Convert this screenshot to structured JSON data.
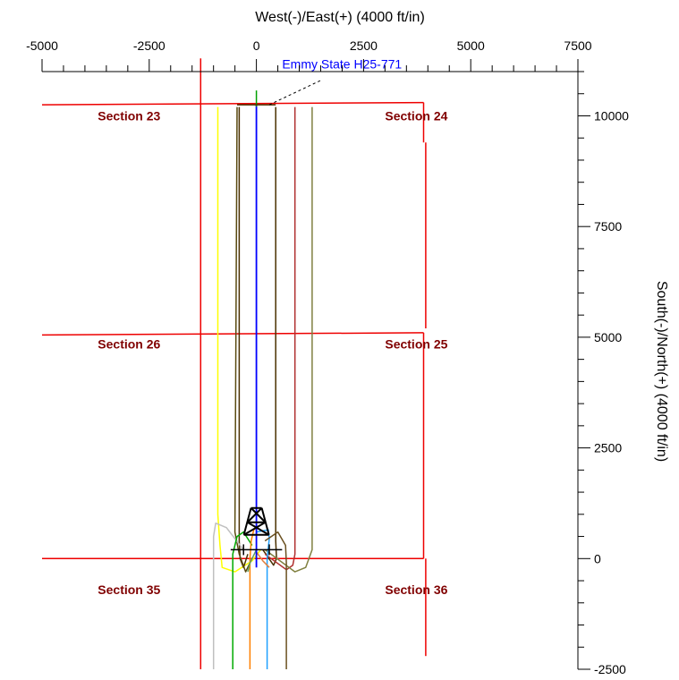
{
  "chart_data": {
    "type": "line",
    "title": "",
    "xlabel": "West(-)/East(+) (4000 ft/in)",
    "ylabel": "South(-)/North(+) (4000 ft/in)",
    "xlim": [
      -5000,
      7500
    ],
    "ylim": [
      -2500,
      11000
    ],
    "x_ticks": [
      -5000,
      -2500,
      0,
      2500,
      5000,
      7500
    ],
    "x_tick_labels": [
      "-5000",
      "-2500",
      "0",
      "2500",
      "5000",
      "7500"
    ],
    "y_ticks": [
      -2500,
      0,
      2500,
      5000,
      7500,
      10000
    ],
    "y_tick_labels": [
      "-2500",
      "0",
      "2500",
      "5000",
      "7500",
      "10000"
    ],
    "grid": false,
    "colors": {
      "section_lines": "#ee0000",
      "section_labels": "#800000",
      "target_well": "#0000ff"
    },
    "target_well": {
      "name": "Emmy State H25-771",
      "color": "#0000ff",
      "x": [
        0,
        0,
        0
      ],
      "y": [
        -200,
        5000,
        10250
      ]
    },
    "sections": [
      {
        "label": "Section 23",
        "x": -3700,
        "y": 9900
      },
      {
        "label": "Section 24",
        "x": 3000,
        "y": 9900
      },
      {
        "label": "Section 26",
        "x": -3700,
        "y": 4750
      },
      {
        "label": "Section 25",
        "x": 3000,
        "y": 4750
      },
      {
        "label": "Section 35",
        "x": -3700,
        "y": -800
      },
      {
        "label": "Section 36",
        "x": 3000,
        "y": -800
      }
    ],
    "section_lines": [
      {
        "x": [
          -5000,
          3900
        ],
        "y": [
          10250,
          10300
        ]
      },
      {
        "x": [
          -5000,
          3900
        ],
        "y": [
          5050,
          5100
        ]
      },
      {
        "x": [
          -5000,
          3900
        ],
        "y": [
          0,
          0
        ]
      },
      {
        "x": [
          -1300,
          -1300
        ],
        "y": [
          11300,
          -2500
        ]
      },
      {
        "x": [
          3900,
          3900
        ],
        "y": [
          10300,
          9400
        ]
      },
      {
        "x": [
          3950,
          3950
        ],
        "y": [
          9400,
          5200
        ]
      },
      {
        "x": [
          3900,
          3900
        ],
        "y": [
          5100,
          0
        ]
      },
      {
        "x": [
          3950,
          3950
        ],
        "y": [
          0,
          -2200
        ]
      }
    ],
    "offset_wells": [
      {
        "color": "#ffff00",
        "x": [
          -900,
          -900,
          -850,
          -800,
          -500,
          -100,
          100
        ],
        "y": [
          10200,
          1000,
          300,
          -200,
          -300,
          -50,
          200
        ]
      },
      {
        "color": "#4a3000",
        "x": [
          -400,
          -400,
          -380,
          -300,
          -200
        ],
        "y": [
          10200,
          400,
          0,
          -200,
          100
        ]
      },
      {
        "color": "#5a4a10",
        "x": [
          -450,
          -500,
          -400,
          -250,
          -100
        ],
        "y": [
          10200,
          600,
          100,
          -300,
          0
        ]
      },
      {
        "color": "#4a3000",
        "x": [
          450,
          450,
          470,
          400,
          150
        ],
        "y": [
          10200,
          400,
          0,
          -150,
          200
        ]
      },
      {
        "color": "#b03030",
        "x": [
          900,
          900,
          850,
          700,
          200
        ],
        "y": [
          10200,
          100,
          -150,
          -250,
          100
        ]
      },
      {
        "color": "#808040",
        "x": [
          1300,
          1300,
          1150,
          900,
          200
        ],
        "y": [
          10200,
          200,
          -200,
          -300,
          200
        ]
      },
      {
        "color": "#c0c0c0",
        "x": [
          -1000,
          -1000,
          -950,
          -700,
          -300
        ],
        "y": [
          -2500,
          500,
          800,
          700,
          200
        ]
      },
      {
        "color": "#00aa00",
        "x": [
          -550,
          -550,
          -450,
          -300,
          -100
        ],
        "y": [
          -2500,
          100,
          500,
          600,
          300
        ]
      },
      {
        "color": "#ff8000",
        "x": [
          -150,
          -150,
          -120,
          -60,
          0
        ],
        "y": [
          -2500,
          0,
          400,
          650,
          700
        ]
      },
      {
        "color": "#20a0ff",
        "x": [
          250,
          250,
          300,
          280,
          0
        ],
        "y": [
          -2500,
          0,
          450,
          650,
          600
        ]
      },
      {
        "color": "#6a5020",
        "x": [
          700,
          700,
          680,
          500,
          200
        ],
        "y": [
          -2500,
          -100,
          300,
          600,
          400
        ]
      },
      {
        "color": "#e08040",
        "x": [
          0,
          150,
          300
        ],
        "y": [
          150,
          -50,
          -200
        ]
      },
      {
        "color": "#60a060",
        "x": [
          0,
          -150,
          -200
        ],
        "y": [
          200,
          -100,
          -300
        ]
      }
    ],
    "symbols": [
      {
        "name": "rig",
        "x": 0,
        "y": 900
      },
      {
        "name": "surface-location",
        "x": 0,
        "y": 200
      }
    ]
  }
}
